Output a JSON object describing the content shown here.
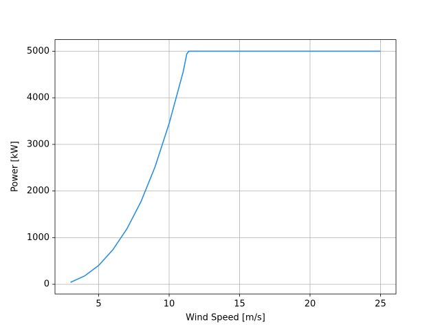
{
  "chart_data": {
    "type": "line",
    "x_label": "Wind Speed [m/s]",
    "y_label": "Power [kW]",
    "x": [
      3,
      4,
      5,
      6,
      7,
      8,
      9,
      10,
      11,
      11.25,
      11.4,
      25
    ],
    "series": [
      {
        "color": "#2a8fe0",
        "values": [
          40,
          177,
          403,
          737,
          1187,
          1771,
          2518,
          3448,
          4562,
          4940,
          5000,
          5000
        ]
      }
    ],
    "xlim": [
      1.9,
      26.1
    ],
    "xticks": [
      5,
      10,
      15,
      20,
      25
    ],
    "ylim": [
      -208,
      5248
    ],
    "yticks": [
      0,
      1000,
      2000,
      3000,
      4000,
      5000
    ],
    "grid": true
  }
}
